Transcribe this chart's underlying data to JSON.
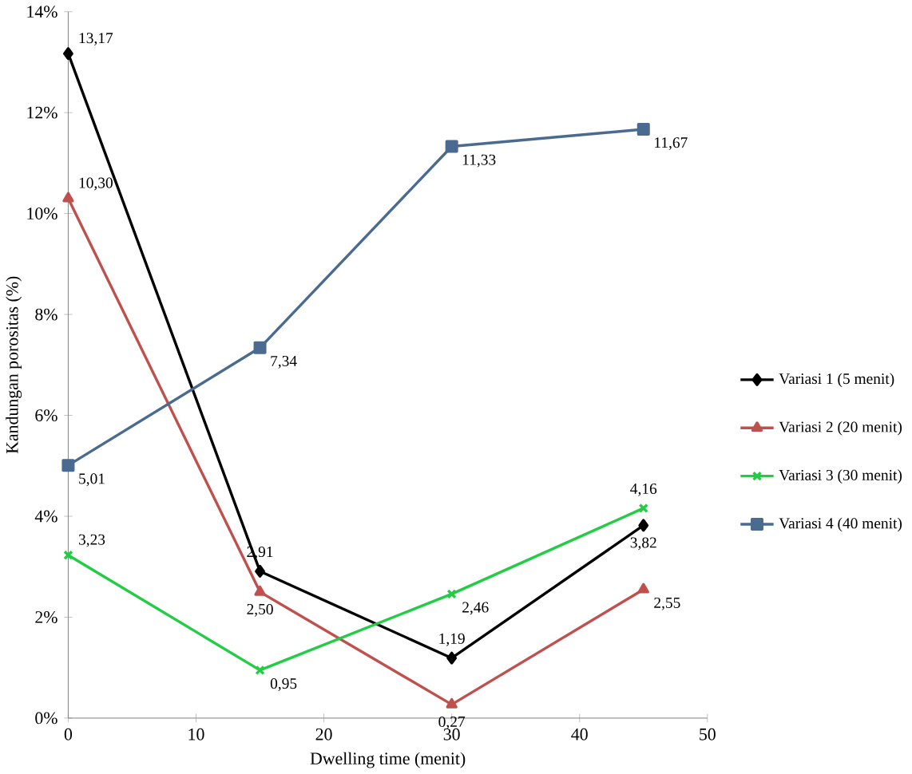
{
  "chart_data": {
    "type": "line",
    "xlabel": "Dwelling time  (menit)",
    "ylabel": "Kandungan porositas  (%)",
    "x": [
      0,
      15,
      30,
      45
    ],
    "series": [
      {
        "name": "Variasi 1 (5 menit)",
        "color": "#000000",
        "marker": "diamond",
        "values": [
          13.17,
          2.91,
          1.19,
          3.82
        ],
        "value_labels": [
          "13,17",
          "2,91",
          "1,19",
          "3,82"
        ]
      },
      {
        "name": "Variasi 2 (20 menit)",
        "color": "#c0504d",
        "marker": "triangle",
        "values": [
          10.3,
          2.5,
          0.27,
          2.55
        ],
        "value_labels": [
          "10,30",
          "2,50",
          "0,27",
          "2,55"
        ]
      },
      {
        "name": "Variasi 3 (30 menit)",
        "color": "#22cc44",
        "marker": "cross",
        "values": [
          3.23,
          0.95,
          2.46,
          4.16
        ],
        "value_labels": [
          "3,23",
          "0,95",
          "2,46",
          "4,16"
        ]
      },
      {
        "name": "Variasi 4 (40 menit)",
        "color": "#4a6a90",
        "marker": "square",
        "values": [
          5.01,
          7.34,
          11.33,
          11.67
        ],
        "value_labels": [
          "5,01",
          "7,34",
          "11,33",
          "11,67"
        ]
      }
    ],
    "xlim": [
      0,
      50
    ],
    "xticks": [
      0,
      10,
      20,
      30,
      40,
      50
    ],
    "ylim": [
      0,
      14
    ],
    "yticks": [
      {
        "value": 0,
        "label": "0%"
      },
      {
        "value": 2,
        "label": "2%"
      },
      {
        "value": 4,
        "label": "4%"
      },
      {
        "value": 6,
        "label": "6%"
      },
      {
        "value": 8,
        "label": "8%"
      },
      {
        "value": 10,
        "label": "10%"
      },
      {
        "value": 12,
        "label": "12%"
      },
      {
        "value": 14,
        "label": "14%"
      }
    ],
    "grid": false,
    "legend": "right",
    "line_style": "solid"
  }
}
